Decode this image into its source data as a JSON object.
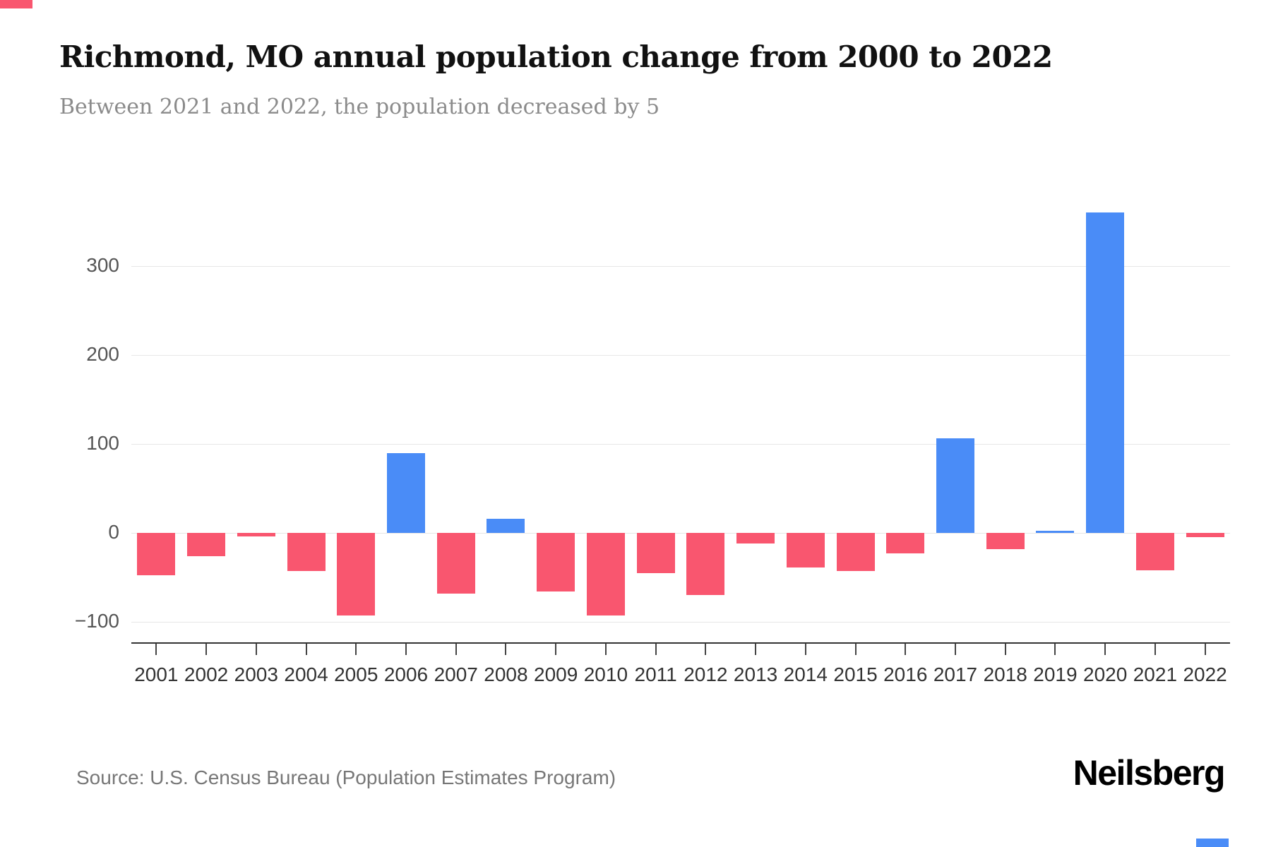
{
  "chart_data": {
    "type": "bar",
    "title": "Richmond, MO annual population change from 2000 to 2022",
    "subtitle": "Between 2021 and 2022, the population decreased by 5",
    "categories": [
      "2001",
      "2002",
      "2003",
      "2004",
      "2005",
      "2006",
      "2007",
      "2008",
      "2009",
      "2010",
      "2011",
      "2012",
      "2013",
      "2014",
      "2015",
      "2016",
      "2017",
      "2018",
      "2019",
      "2020",
      "2021",
      "2022"
    ],
    "values": [
      -48,
      -26,
      -4,
      -43,
      -93,
      90,
      -68,
      16,
      -66,
      -93,
      -45,
      -70,
      -12,
      -39,
      -43,
      -23,
      106,
      -18,
      2,
      360,
      -42,
      -5
    ],
    "yticks": [
      {
        "value": 300,
        "label": "300"
      },
      {
        "value": 200,
        "label": "200"
      },
      {
        "value": 100,
        "label": "100"
      },
      {
        "value": 0,
        "label": "0"
      },
      {
        "value": -100,
        "label": "−100"
      }
    ],
    "ylim": [
      -123,
      388
    ],
    "xlabel": "",
    "ylabel": "",
    "grid": "horizontal",
    "legend": "none",
    "positive_color": "#4A8CF7",
    "negative_color": "#F9566F"
  },
  "footer": {
    "source": "Source: U.S. Census Bureau (Population Estimates Program)",
    "logo": "Neilsberg"
  }
}
